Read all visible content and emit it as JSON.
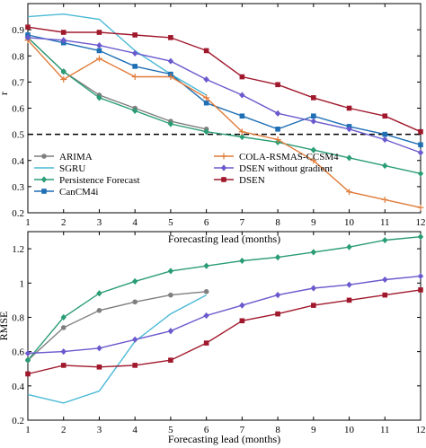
{
  "chart_data": [
    {
      "type": "line",
      "xlabel": "Forecasting lead (months)",
      "ylabel": "r",
      "x": [
        1,
        2,
        3,
        4,
        5,
        6,
        7,
        8,
        9,
        10,
        11,
        12
      ],
      "xlim": [
        1,
        12
      ],
      "ylim": [
        0.2,
        1.0
      ],
      "xticks": [
        1,
        2,
        3,
        4,
        5,
        6,
        7,
        8,
        9,
        10,
        11,
        12
      ],
      "yticks": [
        "0.2",
        "0.3",
        "0.4",
        "0.5",
        "0.6",
        "0.7",
        "0.8",
        "0.9"
      ],
      "grid": false,
      "legend_position": "lower-left",
      "reference_line": {
        "y": 0.5,
        "style": "dashed",
        "color": "#000000"
      },
      "series": [
        {
          "name": "ARIMA",
          "color": "#7f7f7f",
          "marker": "circle",
          "x": [
            1,
            2,
            3,
            4,
            5,
            6
          ],
          "values": [
            0.87,
            0.74,
            0.65,
            0.6,
            0.55,
            0.52
          ]
        },
        {
          "name": "SGRU",
          "color": "#4ab9d6",
          "marker": "none",
          "x": [
            1,
            2,
            3,
            4,
            5,
            6
          ],
          "values": [
            0.95,
            0.96,
            0.94,
            0.82,
            0.73,
            0.65
          ]
        },
        {
          "name": "Persistence Forecast",
          "color": "#2a9d74",
          "marker": "diamond",
          "x": [
            1,
            2,
            3,
            4,
            5,
            6,
            7,
            8,
            9,
            10,
            11,
            12
          ],
          "values": [
            0.87,
            0.74,
            0.64,
            0.59,
            0.54,
            0.51,
            0.49,
            0.47,
            0.44,
            0.41,
            0.38,
            0.35
          ]
        },
        {
          "name": "CanCM4i",
          "color": "#1f6fb5",
          "marker": "square",
          "x": [
            1,
            2,
            3,
            4,
            5,
            6,
            7,
            8,
            9,
            10,
            11,
            12
          ],
          "values": [
            0.88,
            0.85,
            0.82,
            0.76,
            0.73,
            0.62,
            0.57,
            0.52,
            0.57,
            0.53,
            0.5,
            0.46
          ]
        },
        {
          "name": "COLA-RSMAS-CCSM4",
          "color": "#e07b39",
          "marker": "plus",
          "x": [
            1,
            2,
            3,
            4,
            5,
            6,
            7,
            8,
            9,
            10,
            11,
            12
          ],
          "values": [
            0.86,
            0.71,
            0.79,
            0.72,
            0.72,
            0.64,
            0.51,
            0.48,
            0.4,
            0.28,
            0.25,
            0.22
          ]
        },
        {
          "name": "DSEN without gradient",
          "color": "#6a5acd",
          "marker": "diamond",
          "x": [
            1,
            2,
            3,
            4,
            5,
            6,
            7,
            8,
            9,
            10,
            11,
            12
          ],
          "values": [
            0.87,
            0.86,
            0.84,
            0.81,
            0.78,
            0.71,
            0.65,
            0.58,
            0.55,
            0.52,
            0.48,
            0.43
          ]
        },
        {
          "name": "DSEN",
          "color": "#a0182c",
          "marker": "square",
          "x": [
            1,
            2,
            3,
            4,
            5,
            6,
            7,
            8,
            9,
            10,
            11,
            12
          ],
          "values": [
            0.91,
            0.89,
            0.89,
            0.88,
            0.87,
            0.82,
            0.72,
            0.69,
            0.64,
            0.6,
            0.57,
            0.51
          ]
        }
      ]
    },
    {
      "type": "line",
      "xlabel": "Forecasting lead (months)",
      "ylabel": "RMSE",
      "x": [
        1,
        2,
        3,
        4,
        5,
        6,
        7,
        8,
        9,
        10,
        11,
        12
      ],
      "xlim": [
        1,
        12
      ],
      "ylim": [
        0.2,
        1.3
      ],
      "xticks": [
        1,
        2,
        3,
        4,
        5,
        6,
        7,
        8,
        9,
        10,
        11,
        12
      ],
      "yticks": [
        "0.2",
        "0.4",
        "0.6",
        "0.8",
        "1",
        "1.2"
      ],
      "grid": false,
      "series": [
        {
          "name": "ARIMA",
          "color": "#7f7f7f",
          "marker": "circle",
          "x": [
            1,
            2,
            3,
            4,
            5,
            6
          ],
          "values": [
            0.55,
            0.74,
            0.84,
            0.89,
            0.93,
            0.95
          ]
        },
        {
          "name": "SGRU",
          "color": "#4ab9d6",
          "marker": "none",
          "x": [
            1,
            2,
            3,
            4,
            5,
            6
          ],
          "values": [
            0.35,
            0.3,
            0.37,
            0.66,
            0.82,
            0.93
          ]
        },
        {
          "name": "Persistence Forecast",
          "color": "#2a9d74",
          "marker": "diamond",
          "x": [
            1,
            2,
            3,
            4,
            5,
            6,
            7,
            8,
            9,
            10,
            11,
            12
          ],
          "values": [
            0.55,
            0.8,
            0.94,
            1.01,
            1.07,
            1.1,
            1.13,
            1.15,
            1.18,
            1.21,
            1.25,
            1.27
          ]
        },
        {
          "name": "DSEN without gradient",
          "color": "#6a5acd",
          "marker": "diamond",
          "x": [
            1,
            2,
            3,
            4,
            5,
            6,
            7,
            8,
            9,
            10,
            11,
            12
          ],
          "values": [
            0.59,
            0.6,
            0.62,
            0.67,
            0.72,
            0.81,
            0.87,
            0.93,
            0.97,
            0.99,
            1.02,
            1.04
          ]
        },
        {
          "name": "DSEN",
          "color": "#a0182c",
          "marker": "square",
          "x": [
            1,
            2,
            3,
            4,
            5,
            6,
            7,
            8,
            9,
            10,
            11,
            12
          ],
          "values": [
            0.47,
            0.52,
            0.51,
            0.52,
            0.55,
            0.65,
            0.78,
            0.82,
            0.87,
            0.9,
            0.93,
            0.96
          ]
        }
      ]
    }
  ]
}
